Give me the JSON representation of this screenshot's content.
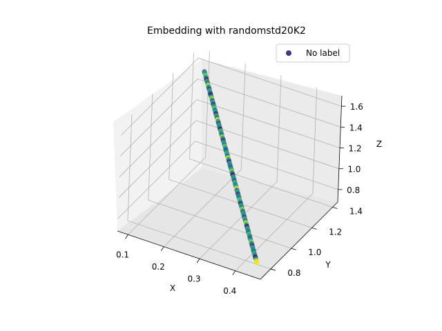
{
  "chart_data": {
    "type": "scatter",
    "projection": "3d",
    "title": "Embedding with randomstd20K2",
    "xlabel": "X",
    "ylabel": "Y",
    "zlabel": "Z",
    "x_ticks": [
      "0.1",
      "0.2",
      "0.3",
      "0.4"
    ],
    "y_ticks": [
      "0.8",
      "1.0",
      "1.2",
      "1.4"
    ],
    "z_ticks": [
      "0.8",
      "1.0",
      "1.2",
      "1.4",
      "1.6"
    ],
    "xlim": [
      0.07,
      0.47
    ],
    "ylim": [
      0.7,
      1.45
    ],
    "zlim": [
      0.68,
      1.7
    ],
    "grid": true,
    "legend": {
      "placement": "top-right",
      "entries": [
        "No label"
      ],
      "marker_color": "#3b3b7e"
    },
    "colormap": "viridis",
    "series": [
      {
        "name": "No label",
        "description_x_range": [
          0.08,
          0.46
        ],
        "points": [
          {
            "t": 0.0,
            "c": 0.3
          },
          {
            "t": 0.01,
            "c": 0.55
          },
          {
            "t": 0.02,
            "c": 0.8
          },
          {
            "t": 0.03,
            "c": 0.45
          },
          {
            "t": 0.04,
            "c": 0.1
          },
          {
            "t": 0.05,
            "c": 0.6
          },
          {
            "t": 0.06,
            "c": 0.35
          },
          {
            "t": 0.07,
            "c": 0.9
          },
          {
            "t": 0.08,
            "c": 0.5
          },
          {
            "t": 0.09,
            "c": 0.2
          },
          {
            "t": 0.1,
            "c": 0.65
          },
          {
            "t": 0.11,
            "c": 0.4
          },
          {
            "t": 0.12,
            "c": 0.05
          },
          {
            "t": 0.13,
            "c": 0.55
          },
          {
            "t": 0.14,
            "c": 0.85
          },
          {
            "t": 0.15,
            "c": 0.3
          },
          {
            "t": 0.16,
            "c": 0.6
          },
          {
            "t": 0.17,
            "c": 0.15
          },
          {
            "t": 0.18,
            "c": 0.5
          },
          {
            "t": 0.19,
            "c": 0.75
          },
          {
            "t": 0.2,
            "c": 0.4
          },
          {
            "t": 0.21,
            "c": 0.55
          },
          {
            "t": 0.22,
            "c": 0.1
          },
          {
            "t": 0.23,
            "c": 0.65
          },
          {
            "t": 0.24,
            "c": 0.35
          },
          {
            "t": 0.25,
            "c": 0.95
          },
          {
            "t": 0.26,
            "c": 0.5
          },
          {
            "t": 0.27,
            "c": 0.25
          },
          {
            "t": 0.28,
            "c": 0.6
          },
          {
            "t": 0.29,
            "c": 0.45
          },
          {
            "t": 0.3,
            "c": 0.08
          },
          {
            "t": 0.31,
            "c": 0.7
          },
          {
            "t": 0.32,
            "c": 0.55
          },
          {
            "t": 0.33,
            "c": 0.3
          },
          {
            "t": 0.34,
            "c": 0.85
          },
          {
            "t": 0.35,
            "c": 0.45
          },
          {
            "t": 0.36,
            "c": 0.15
          },
          {
            "t": 0.37,
            "c": 0.6
          },
          {
            "t": 0.38,
            "c": 0.4
          },
          {
            "t": 0.39,
            "c": 0.75
          },
          {
            "t": 0.4,
            "c": 0.5
          },
          {
            "t": 0.41,
            "c": 0.2
          },
          {
            "t": 0.42,
            "c": 0.55
          },
          {
            "t": 0.43,
            "c": 0.65
          },
          {
            "t": 0.44,
            "c": 0.35
          },
          {
            "t": 0.45,
            "c": 0.9
          },
          {
            "t": 0.46,
            "c": 0.5
          },
          {
            "t": 0.47,
            "c": 0.1
          },
          {
            "t": 0.48,
            "c": 0.6
          },
          {
            "t": 0.49,
            "c": 0.45
          },
          {
            "t": 0.5,
            "c": 0.3
          },
          {
            "t": 0.51,
            "c": 0.55
          },
          {
            "t": 0.52,
            "c": 0.8
          },
          {
            "t": 0.53,
            "c": 0.4
          },
          {
            "t": 0.54,
            "c": 0.05
          },
          {
            "t": 0.55,
            "c": 0.6
          },
          {
            "t": 0.56,
            "c": 0.5
          },
          {
            "t": 0.57,
            "c": 0.25
          },
          {
            "t": 0.58,
            "c": 0.7
          },
          {
            "t": 0.59,
            "c": 0.45
          },
          {
            "t": 0.6,
            "c": 0.55
          },
          {
            "t": 0.61,
            "c": 0.95
          },
          {
            "t": 0.62,
            "c": 0.35
          },
          {
            "t": 0.63,
            "c": 0.6
          },
          {
            "t": 0.64,
            "c": 0.15
          },
          {
            "t": 0.65,
            "c": 0.5
          },
          {
            "t": 0.66,
            "c": 0.4
          },
          {
            "t": 0.67,
            "c": 0.75
          },
          {
            "t": 0.68,
            "c": 0.55
          },
          {
            "t": 0.69,
            "c": 0.1
          },
          {
            "t": 0.7,
            "c": 0.6
          },
          {
            "t": 0.71,
            "c": 0.45
          },
          {
            "t": 0.72,
            "c": 0.85
          },
          {
            "t": 0.73,
            "c": 0.3
          },
          {
            "t": 0.74,
            "c": 0.55
          },
          {
            "t": 0.75,
            "c": 0.5
          },
          {
            "t": 0.76,
            "c": 0.2
          },
          {
            "t": 0.77,
            "c": 0.65
          },
          {
            "t": 0.78,
            "c": 0.4
          },
          {
            "t": 0.79,
            "c": 0.9
          },
          {
            "t": 0.8,
            "c": 0.55
          },
          {
            "t": 0.81,
            "c": 0.05
          },
          {
            "t": 0.82,
            "c": 0.6
          },
          {
            "t": 0.83,
            "c": 0.45
          },
          {
            "t": 0.84,
            "c": 0.35
          },
          {
            "t": 0.85,
            "c": 0.7
          },
          {
            "t": 0.86,
            "c": 0.5
          },
          {
            "t": 0.87,
            "c": 0.25
          },
          {
            "t": 0.88,
            "c": 0.55
          },
          {
            "t": 0.89,
            "c": 0.8
          },
          {
            "t": 0.9,
            "c": 0.4
          },
          {
            "t": 0.91,
            "c": 0.15
          },
          {
            "t": 0.92,
            "c": 0.6
          },
          {
            "t": 0.93,
            "c": 0.5
          },
          {
            "t": 0.94,
            "c": 0.3
          },
          {
            "t": 0.95,
            "c": 0.65
          },
          {
            "t": 0.96,
            "c": 0.45
          },
          {
            "t": 0.97,
            "c": 0.05
          },
          {
            "t": 0.98,
            "c": 0.55
          },
          {
            "t": 0.99,
            "c": 0.98
          },
          {
            "t": 1.0,
            "c": 0.97
          }
        ]
      }
    ]
  }
}
